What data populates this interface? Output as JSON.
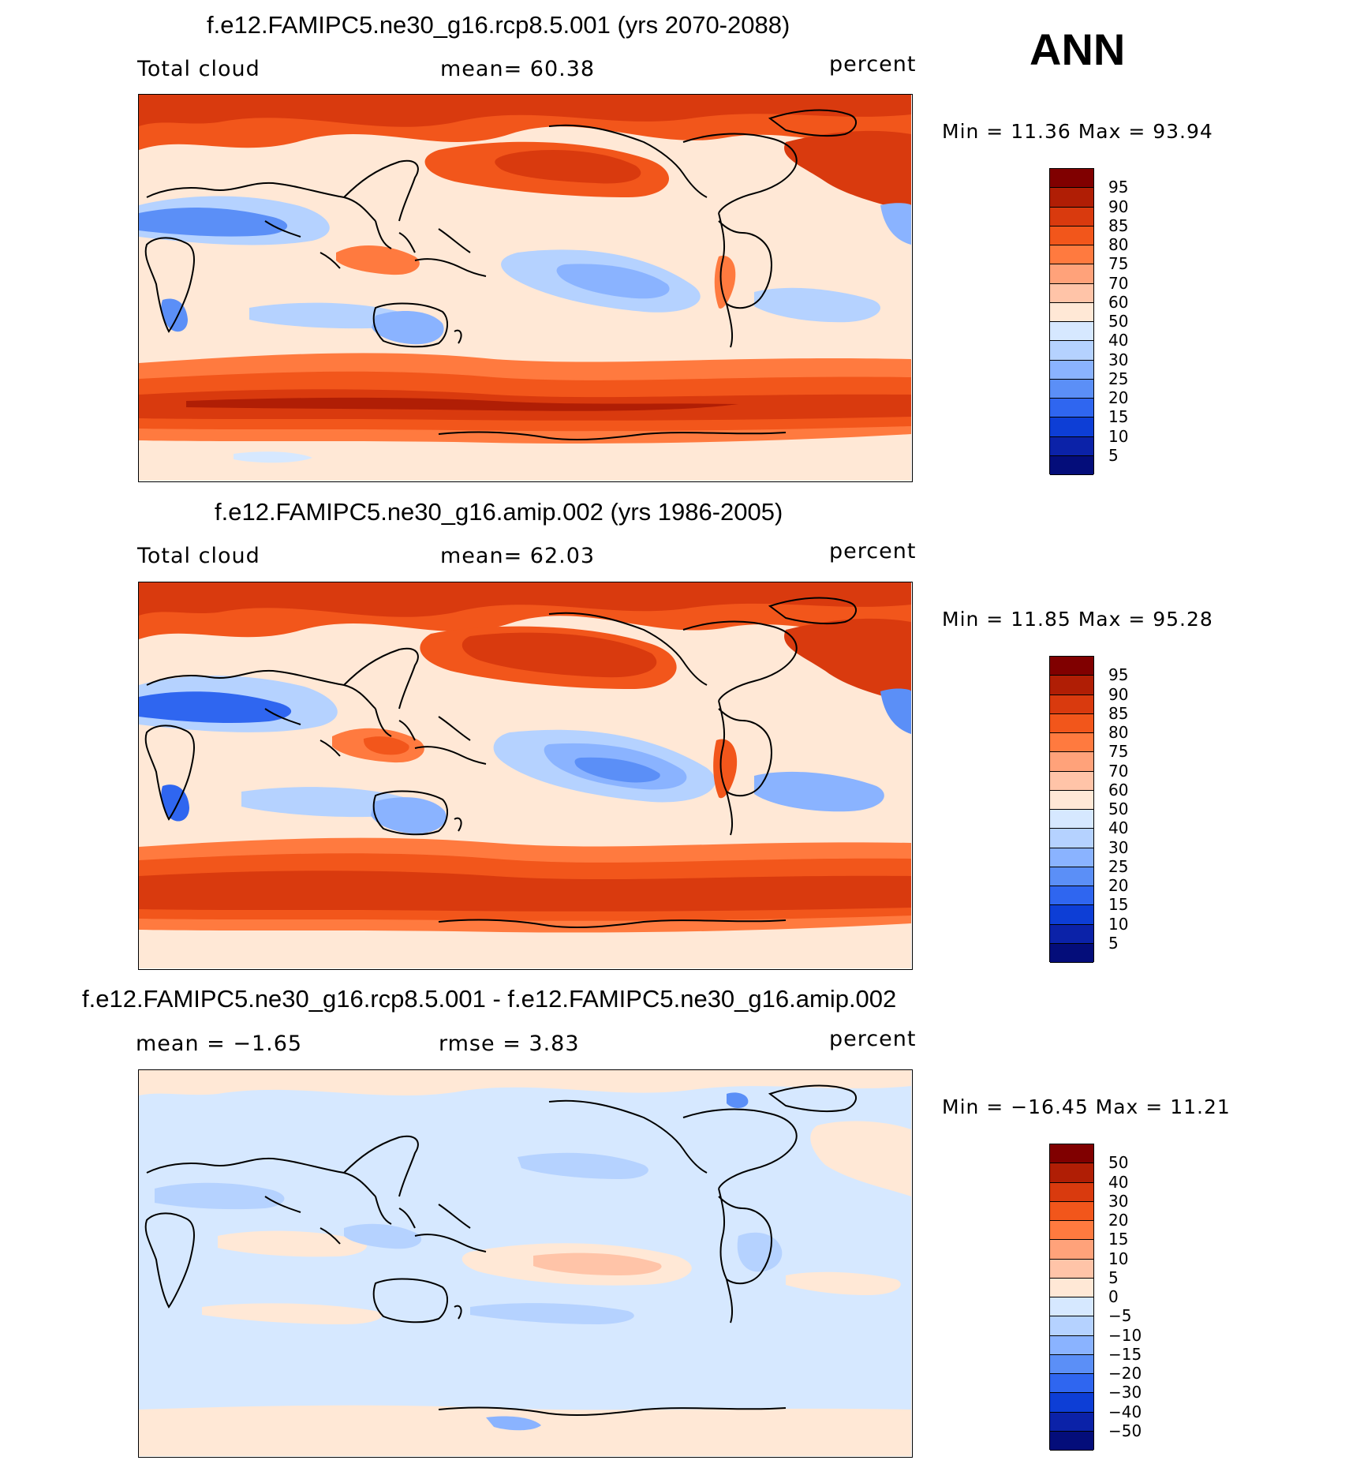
{
  "season": "ANN",
  "panels": [
    {
      "title": "f.e12.FAMIPC5.ne30_g16.rcp8.5.001 (yrs 2070-2088)",
      "left_label": "Total cloud",
      "center_label": "mean=   60.38",
      "units": "percent",
      "stats": "Min =    11.36  Max =    93.94",
      "colorbar_labels": [
        "95",
        "90",
        "85",
        "80",
        "75",
        "70",
        "60",
        "50",
        "40",
        "30",
        "25",
        "20",
        "15",
        "10",
        "5"
      ],
      "map_layers": [
        "base-cream",
        "antarctic-belt",
        "pacific-north",
        "atlantic-north",
        "arctic",
        "sahara-clear",
        "stratocumulus",
        "maritime-continent"
      ]
    },
    {
      "title": "f.e12.FAMIPC5.ne30_g16.amip.002 (yrs 1986-2005)",
      "left_label": "Total cloud",
      "center_label": "mean=   62.03",
      "units": "percent",
      "stats": "Min =    11.85  Max =    95.28",
      "colorbar_labels": [
        "95",
        "90",
        "85",
        "80",
        "75",
        "70",
        "60",
        "50",
        "40",
        "30",
        "25",
        "20",
        "15",
        "10",
        "5"
      ],
      "map_layers": [
        "base-cream",
        "antarctic-belt",
        "pacific-north",
        "atlantic-north",
        "arctic",
        "sahara-clear",
        "stratocumulus",
        "maritime-continent"
      ]
    },
    {
      "title": "f.e12.FAMIPC5.ne30_g16.rcp8.5.001 - f.e12.FAMIPC5.ne30_g16.amip.002",
      "left_label": "mean =   −1.65",
      "center_label": "rmse =     3.83",
      "units": "percent",
      "stats": "Min = −16.45  Max =    11.21",
      "colorbar_labels": [
        "50",
        "40",
        "30",
        "20",
        "15",
        "10",
        "5",
        "0",
        "−5",
        "−10",
        "−15",
        "−20",
        "−30",
        "−40",
        "−50"
      ],
      "map_layers": [
        "base-lightblue",
        "equatorial-pacific-pos",
        "arctic-pos",
        "blue-patches"
      ]
    }
  ],
  "colors": {
    "cloud_scale": [
      "#800000",
      "#b01e05",
      "#d93a0e",
      "#f2561b",
      "#ff7a3f",
      "#ffa27a",
      "#ffc4a8",
      "#ffe8d6",
      "#d6e8ff",
      "#b5d2ff",
      "#8ab3ff",
      "#5b8ff7",
      "#2f66f0",
      "#0d3ed6",
      "#0b22a8",
      "#040d7a"
    ],
    "diff_scale": [
      "#800000",
      "#b01e05",
      "#d93a0e",
      "#f2561b",
      "#ff7a3f",
      "#ffa27a",
      "#ffc4a8",
      "#ffe8d6",
      "#d6e8ff",
      "#b5d2ff",
      "#8ab3ff",
      "#5b8ff7",
      "#2f66f0",
      "#0d3ed6",
      "#0b22a8",
      "#040d7a"
    ],
    "coastline": "#000000"
  }
}
